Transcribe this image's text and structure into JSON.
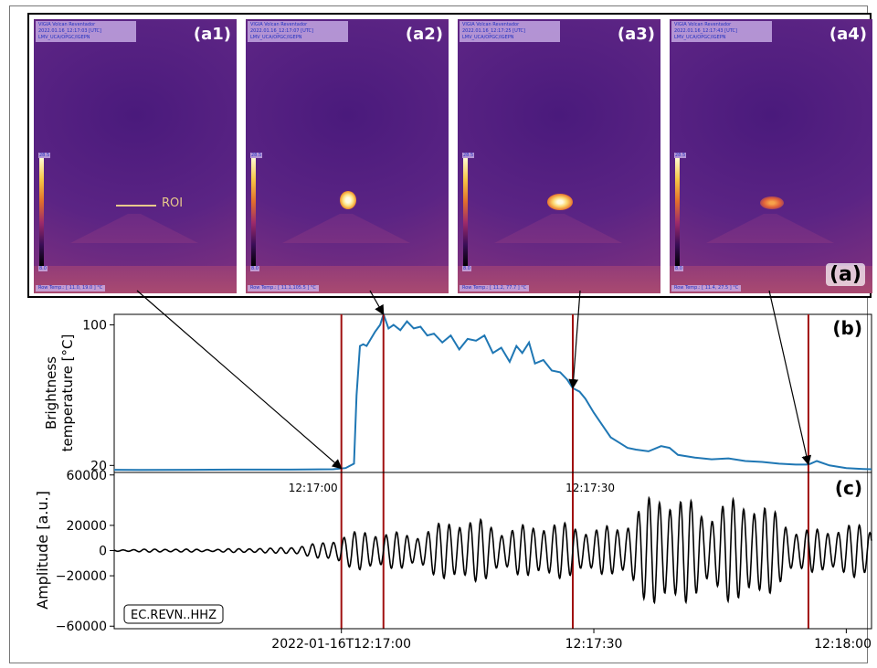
{
  "panel_a": {
    "label": "(a)",
    "roi_label": "ROI",
    "thumbnails": [
      {
        "label": "(a1)",
        "header": [
          "VIGIA Volcan Reventador",
          "2022.01.16_12:17:03 [UTC]",
          "LMV_UCA/OPGC/IGEPN"
        ],
        "cbar_max": "28.5",
        "cbar_min": "8.0",
        "footer": "Row Temp.: [ 11.0, 19.0 ] °C",
        "hot_spot": 0
      },
      {
        "label": "(a2)",
        "header": [
          "VIGIA Volcan Reventador",
          "2022.01.16_12:17:07 [UTC]",
          "LMV_UCA/OPGC/IGEPN"
        ],
        "cbar_max": "28.5",
        "cbar_min": "8.0",
        "footer": "Row Temp.: [ 11.1,105.5 ] °C",
        "hot_spot": 3
      },
      {
        "label": "(a3)",
        "header": [
          "VIGIA Volcan Reventador",
          "2022.01.16_12:17:25 [UTC]",
          "LMV_UCA/OPGC/IGEPN"
        ],
        "cbar_max": "28.5",
        "cbar_min": "8.0",
        "footer": "Row Temp.: [ 11.2, 77.7 ] °C",
        "hot_spot": 2
      },
      {
        "label": "(a4)",
        "header": [
          "VIGIA Volcan Reventador",
          "2022.01.16_12:17:43 [UTC]",
          "LMV_UCA/OPGC/IGEPN"
        ],
        "cbar_max": "28.5",
        "cbar_min": "8.0",
        "footer": "Row Temp.: [ 11.4, 27.5 ] °C",
        "hot_spot": 1
      }
    ]
  },
  "colors": {
    "line_b": "#1f77b4",
    "line_c": "#000000",
    "event_line": "#a01010"
  },
  "chart_data": [
    {
      "panel": "(b)",
      "type": "line",
      "ylabel": "Brightness temperature [°C]",
      "ylabel_lines": [
        "Brightness",
        "temperature [°C]"
      ],
      "xlim": [
        -27,
        63
      ],
      "ylim": [
        16,
        106
      ],
      "yticks": [
        20,
        100
      ],
      "ytick_labels": [
        "20",
        "100"
      ],
      "tick_annotations": [
        {
          "t": 0,
          "label": "12:17:00"
        },
        {
          "t": 30,
          "label": "12:17:30"
        }
      ],
      "event_times": [
        0,
        5,
        27.5,
        55.5
      ],
      "series": [
        {
          "x": [
            -27,
            -24,
            -18,
            -12,
            -6,
            -1,
            0.5,
            1.5,
            1.8,
            2.2,
            2.6,
            3.0,
            3.5,
            4.0,
            4.6,
            5.0,
            5.6,
            6.2,
            7.0,
            7.8,
            8.6,
            9.4,
            10.2,
            11.0,
            12.0,
            13.0,
            14.0,
            15.0,
            16.0,
            17.0,
            18.0,
            19.0,
            20.0,
            20.8,
            21.5,
            22.3,
            23.0,
            24.0,
            25.0,
            26.0,
            26.8,
            27.5,
            28.3,
            29.0,
            30.0,
            31.0,
            32.0,
            33.0,
            34.0,
            35.0,
            36.5,
            38.0,
            39.0,
            40.0,
            42.0,
            44.0,
            46.0,
            48.0,
            50.0,
            52.0,
            54.0,
            55.5,
            56.5,
            58.0,
            60.0,
            62.0,
            63.0
          ],
          "y": [
            17.5,
            17.4,
            17.5,
            17.6,
            17.6,
            17.8,
            18.5,
            21,
            60,
            88,
            89,
            88,
            92,
            96,
            100,
            106,
            98,
            100,
            97,
            102,
            98,
            99,
            94,
            95,
            90,
            94,
            86,
            92,
            91,
            94,
            84,
            87,
            79,
            88,
            84,
            90,
            78,
            80,
            74,
            73,
            69,
            64,
            62,
            58,
            50,
            43,
            36,
            33,
            30,
            29,
            28,
            31,
            30,
            26,
            24.5,
            23.5,
            24,
            22.5,
            22,
            21,
            20.5,
            20.5,
            22.5,
            20,
            18.5,
            18,
            17.8
          ]
        }
      ]
    },
    {
      "panel": "(c)",
      "type": "line",
      "ylabel": "Amplitude [a.u.]",
      "xlim": [
        -27,
        63
      ],
      "ylim": [
        -62000,
        62000
      ],
      "yticks": [
        -60000,
        -20000,
        0,
        20000,
        60000
      ],
      "ytick_labels": [
        "−60000",
        "−20000",
        "0",
        "20000",
        "60000"
      ],
      "xtick_times": [
        0,
        30,
        60
      ],
      "xtick_labels": [
        "2022-01-16T12:17:00",
        "12:17:30",
        "12:18:00"
      ],
      "station": "EC.REVN..HHZ",
      "event_times": [
        0,
        5,
        27.5,
        55.5
      ],
      "series": [
        {
          "name": "EC.REVN..HHZ",
          "period_s": 1.25,
          "envelope": {
            "t": [
              -27,
              -8,
              -3,
              0,
              5,
              12,
              18,
              24,
              27,
              33,
              38,
              44,
              50,
              56,
              63
            ],
            "a": [
              1000,
              2000,
              8000,
              13000,
              19000,
              24000,
              30000,
              24000,
              22000,
              30000,
              48000,
              55000,
              38000,
              24000,
              20000
            ]
          }
        }
      ]
    }
  ]
}
